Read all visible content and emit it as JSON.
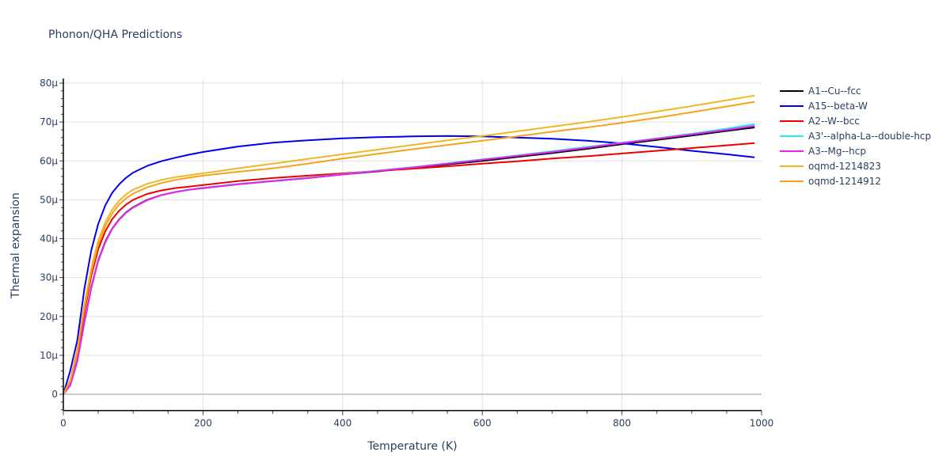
{
  "chart_data": {
    "type": "line",
    "title": "Phonon/QHA Predictions",
    "xlabel": "Temperature (K)",
    "ylabel": "Thermal expansion",
    "xlim": [
      0,
      1000
    ],
    "ylim": [
      -4.2,
      81.2
    ],
    "x_ticks": [
      "0",
      "200",
      "400",
      "600",
      "800",
      "1000"
    ],
    "y_ticks": [
      "0",
      "10μ",
      "20μ",
      "30μ",
      "40μ",
      "50μ",
      "60μ",
      "70μ",
      "80μ"
    ],
    "grid": true,
    "legend_position": "right",
    "units_note": "y values in units of 1e-6 (μ)",
    "x": [
      0,
      10,
      20,
      30,
      40,
      50,
      60,
      70,
      80,
      90,
      100,
      120,
      140,
      160,
      180,
      200,
      250,
      300,
      350,
      400,
      450,
      500,
      550,
      600,
      650,
      700,
      750,
      800,
      850,
      900,
      950,
      990
    ],
    "series": [
      {
        "name": "A1--Cu--fcc",
        "color": "#000000",
        "values": [
          0,
          2.4,
          8.6,
          18.5,
          27.5,
          34.5,
          39.2,
          42.6,
          45.0,
          46.8,
          48.1,
          50.0,
          51.2,
          52.0,
          52.6,
          53.0,
          54.0,
          54.8,
          55.6,
          56.5,
          57.3,
          58.2,
          59.1,
          60.0,
          61.0,
          62.0,
          63.1,
          64.3,
          65.4,
          66.5,
          67.7,
          68.6
        ]
      },
      {
        "name": "A15--beta-W",
        "color": "#0000ee",
        "values": [
          0,
          6.1,
          13.8,
          27.0,
          37.0,
          43.8,
          48.5,
          51.8,
          54.0,
          55.7,
          57.0,
          58.7,
          59.9,
          60.8,
          61.6,
          62.3,
          63.7,
          64.7,
          65.3,
          65.8,
          66.1,
          66.3,
          66.4,
          66.3,
          66.0,
          65.7,
          65.2,
          64.5,
          63.6,
          62.6,
          61.7,
          60.9
        ]
      },
      {
        "name": "A2--W--bcc",
        "color": "#ee0000",
        "values": [
          0,
          3.5,
          10.5,
          21.0,
          30.5,
          37.3,
          41.9,
          45.0,
          47.2,
          48.8,
          50.0,
          51.5,
          52.4,
          53.0,
          53.4,
          53.8,
          54.8,
          55.6,
          56.2,
          56.8,
          57.4,
          58.0,
          58.6,
          59.3,
          59.9,
          60.6,
          61.2,
          61.9,
          62.6,
          63.3,
          64.0,
          64.6
        ]
      },
      {
        "name": "A3'--alpha-La--double-hcp",
        "color": "#22eeee",
        "values": [
          0,
          2.3,
          8.4,
          18.3,
          27.3,
          34.3,
          39.0,
          42.5,
          44.9,
          46.7,
          48.0,
          49.9,
          51.2,
          52.0,
          52.6,
          53.1,
          54.1,
          54.9,
          55.7,
          56.6,
          57.5,
          58.4,
          59.4,
          60.4,
          61.4,
          62.5,
          63.6,
          64.7,
          65.8,
          67.0,
          68.3,
          69.5
        ]
      },
      {
        "name": "A3--Mg--hcp",
        "color": "#ee22ee",
        "values": [
          0,
          2.3,
          8.4,
          18.3,
          27.3,
          34.3,
          39.0,
          42.5,
          44.9,
          46.7,
          48.0,
          49.9,
          51.2,
          52.0,
          52.6,
          53.0,
          54.0,
          54.8,
          55.6,
          56.5,
          57.4,
          58.3,
          59.3,
          60.3,
          61.3,
          62.3,
          63.4,
          64.6,
          65.7,
          66.8,
          68.0,
          69.0
        ]
      },
      {
        "name": "oqmd-1214823",
        "color": "#f0b825",
        "values": [
          0,
          3.8,
          11.5,
          23.0,
          32.5,
          39.5,
          44.2,
          47.5,
          49.8,
          51.4,
          52.6,
          54.1,
          55.1,
          55.8,
          56.3,
          56.8,
          58.1,
          59.3,
          60.5,
          61.7,
          62.9,
          64.1,
          65.3,
          66.4,
          67.6,
          68.8,
          70.0,
          71.3,
          72.7,
          74.1,
          75.6,
          76.8
        ]
      },
      {
        "name": "oqmd-1214912",
        "color": "#f9a11b",
        "values": [
          0,
          3.4,
          10.8,
          22.0,
          31.5,
          38.5,
          43.2,
          46.5,
          48.8,
          50.4,
          51.6,
          53.2,
          54.3,
          55.1,
          55.7,
          56.2,
          57.2,
          58.1,
          59.3,
          60.6,
          61.8,
          63.0,
          64.1,
          65.2,
          66.3,
          67.5,
          68.6,
          69.8,
          71.1,
          72.5,
          74.0,
          75.2
        ]
      }
    ]
  }
}
